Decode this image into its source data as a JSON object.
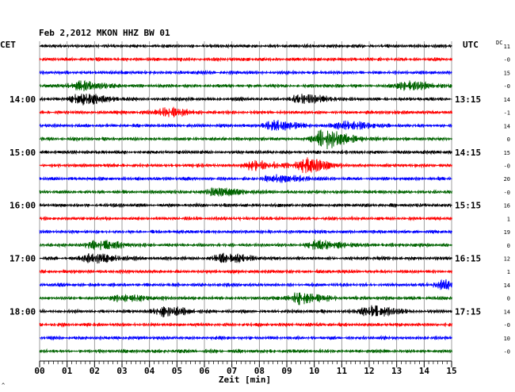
{
  "title": "Feb 2,2012   MKON HHZ BW 01",
  "left_timezone": "CET",
  "right_timezone": "UTC",
  "dc_header": "DC",
  "footer_mark": "^",
  "chart_data": {
    "type": "line",
    "title": "Feb 2,2012   MKON HHZ BW 01",
    "xlabel": "Zeit [min]",
    "xlim": [
      0,
      15
    ],
    "x_tick_labels": [
      "00",
      "01",
      "02",
      "03",
      "04",
      "05",
      "06",
      "07",
      "08",
      "09",
      "10",
      "11",
      "12",
      "13",
      "14",
      "15"
    ],
    "grid": true,
    "trace_colors": [
      "#000000",
      "#ff0000",
      "#0000ff",
      "#006400"
    ],
    "left_hour_labels": [
      {
        "trace": 4,
        "label": "14:00"
      },
      {
        "trace": 8,
        "label": "15:00"
      },
      {
        "trace": 12,
        "label": "16:00"
      },
      {
        "trace": 16,
        "label": "17:00"
      },
      {
        "trace": 20,
        "label": "18:00"
      }
    ],
    "right_hour_labels": [
      {
        "trace": 0,
        "label": "UTC"
      },
      {
        "trace": 4,
        "label": "13:15"
      },
      {
        "trace": 8,
        "label": "14:15"
      },
      {
        "trace": 12,
        "label": "15:15"
      },
      {
        "trace": 16,
        "label": "16:15"
      },
      {
        "trace": 20,
        "label": "17:15"
      }
    ],
    "dc_offsets": [
      "11",
      "-0",
      "15",
      "-0",
      "14",
      "-1",
      "14",
      "0",
      "15",
      "-0",
      "20",
      "-0",
      "16",
      "1",
      "19",
      "0",
      "12",
      "1",
      "14",
      "0",
      "14",
      "-0",
      "10",
      "-0"
    ],
    "events": [
      {
        "trace": 3,
        "minute": 1.4,
        "amplitude": 5
      },
      {
        "trace": 3,
        "minute": 13.3,
        "amplitude": 5
      },
      {
        "trace": 4,
        "minute": 1.5,
        "amplitude": 6
      },
      {
        "trace": 4,
        "minute": 9.5,
        "amplitude": 5
      },
      {
        "trace": 5,
        "minute": 4.6,
        "amplitude": 5
      },
      {
        "trace": 6,
        "minute": 8.5,
        "amplitude": 5
      },
      {
        "trace": 6,
        "minute": 11.1,
        "amplitude": 5
      },
      {
        "trace": 7,
        "minute": 10.3,
        "amplitude": 11
      },
      {
        "trace": 9,
        "minute": 9.6,
        "amplitude": 8
      },
      {
        "trace": 9,
        "minute": 7.8,
        "amplitude": 5
      },
      {
        "trace": 10,
        "minute": 8.6,
        "amplitude": 4
      },
      {
        "trace": 11,
        "minute": 6.4,
        "amplitude": 4
      },
      {
        "trace": 15,
        "minute": 2.1,
        "amplitude": 5
      },
      {
        "trace": 15,
        "minute": 10.1,
        "amplitude": 5
      },
      {
        "trace": 16,
        "minute": 1.9,
        "amplitude": 5
      },
      {
        "trace": 16,
        "minute": 6.7,
        "amplitude": 5
      },
      {
        "trace": 18,
        "minute": 14.7,
        "amplitude": 5
      },
      {
        "trace": 19,
        "minute": 9.4,
        "amplitude": 7
      },
      {
        "trace": 19,
        "minute": 3.0,
        "amplitude": 4
      },
      {
        "trace": 20,
        "minute": 4.5,
        "amplitude": 6
      },
      {
        "trace": 20,
        "minute": 12.0,
        "amplitude": 6
      }
    ],
    "traces": 24
  }
}
